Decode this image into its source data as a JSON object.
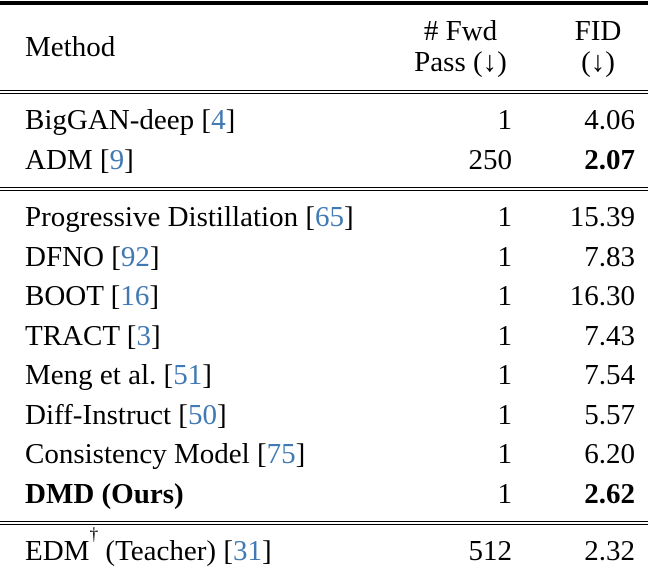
{
  "table": {
    "header": {
      "method": "Method",
      "fwd": [
        "# Fwd",
        "Pass (↓)"
      ],
      "fid": [
        "FID",
        "(↓)"
      ]
    },
    "citation_brackets": [
      "[",
      "]"
    ],
    "colors": {
      "citation_link": "#4179b4",
      "text": "#000000",
      "background": "#ffffff"
    },
    "sections": [
      {
        "rows": [
          {
            "method": "BigGAN-deep",
            "cite": "4",
            "fwd": "1",
            "fid": "4.06"
          },
          {
            "method": "ADM",
            "cite": "9",
            "fwd": "250",
            "fid": "2.07",
            "fid_bold": true
          }
        ]
      },
      {
        "rows": [
          {
            "method": "Progressive Distillation",
            "cite": "65",
            "fwd": "1",
            "fid": "15.39"
          },
          {
            "method": "DFNO",
            "cite": "92",
            "fwd": "1",
            "fid": "7.83"
          },
          {
            "method": "BOOT",
            "cite": "16",
            "fwd": "1",
            "fid": "16.30"
          },
          {
            "method": "TRACT",
            "cite": "3",
            "fwd": "1",
            "fid": "7.43"
          },
          {
            "method": "Meng et al.",
            "cite": "51",
            "fwd": "1",
            "fid": "7.54"
          },
          {
            "method": "Diff-Instruct",
            "cite": "50",
            "fwd": "1",
            "fid": "5.57"
          },
          {
            "method": "Consistency Model",
            "cite": "75",
            "fwd": "1",
            "fid": "6.20"
          },
          {
            "method": "DMD (Ours)",
            "cite": null,
            "fwd": "1",
            "fid": "2.62",
            "method_bold": true,
            "fid_bold": true
          }
        ]
      },
      {
        "rows": [
          {
            "method": "EDM",
            "sup": "†",
            "method_suffix": " (Teacher)",
            "cite": "31",
            "fwd": "512",
            "fid": "2.32"
          }
        ]
      }
    ]
  }
}
